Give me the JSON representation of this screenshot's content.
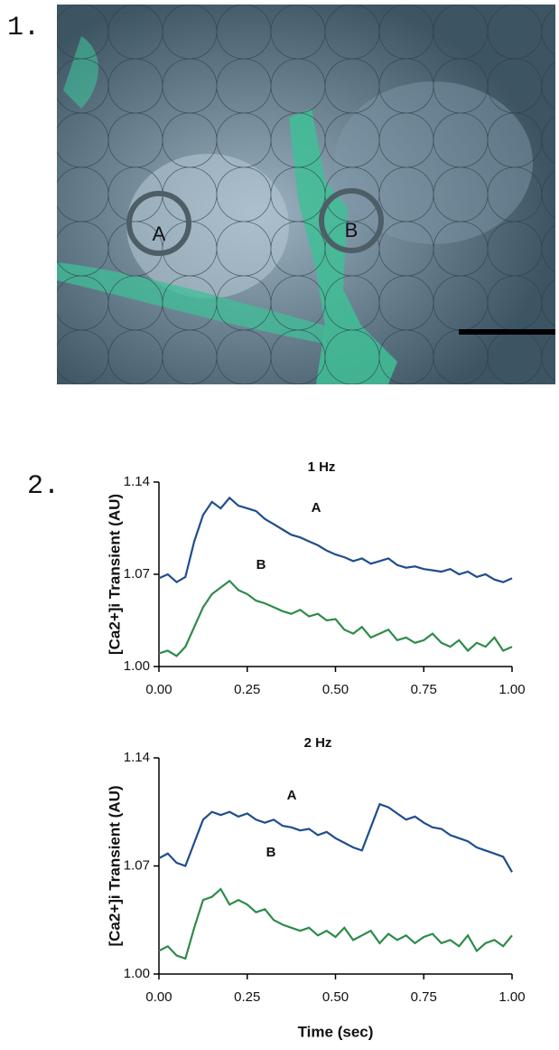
{
  "panel_labels": [
    "1.",
    "2."
  ],
  "micrograph": {
    "labels": [
      "A",
      "B"
    ]
  },
  "chart_data": [
    {
      "type": "line",
      "title": "1 Hz",
      "y_label": "[Ca2+]i Transient (AU)",
      "x": [
        0,
        0.025,
        0.05,
        0.075,
        0.1,
        0.125,
        0.15,
        0.175,
        0.2,
        0.225,
        0.25,
        0.275,
        0.3,
        0.325,
        0.35,
        0.375,
        0.4,
        0.425,
        0.45,
        0.475,
        0.5,
        0.525,
        0.55,
        0.575,
        0.6,
        0.625,
        0.65,
        0.675,
        0.7,
        0.725,
        0.75,
        0.775,
        0.8,
        0.825,
        0.85,
        0.875,
        0.9,
        0.925,
        0.95,
        0.975,
        1.0
      ],
      "series": [
        {
          "name": "A",
          "color": "#1f4e8c",
          "values": [
            1.067,
            1.07,
            1.064,
            1.068,
            1.095,
            1.115,
            1.125,
            1.12,
            1.128,
            1.122,
            1.12,
            1.118,
            1.112,
            1.108,
            1.104,
            1.1,
            1.098,
            1.095,
            1.092,
            1.088,
            1.085,
            1.083,
            1.08,
            1.082,
            1.078,
            1.08,
            1.082,
            1.077,
            1.075,
            1.076,
            1.074,
            1.073,
            1.072,
            1.074,
            1.07,
            1.072,
            1.068,
            1.07,
            1.066,
            1.064,
            1.067
          ]
        },
        {
          "name": "B",
          "color": "#2e8b4a",
          "values": [
            1.01,
            1.012,
            1.008,
            1.015,
            1.03,
            1.045,
            1.055,
            1.06,
            1.065,
            1.058,
            1.055,
            1.05,
            1.048,
            1.045,
            1.042,
            1.04,
            1.043,
            1.038,
            1.04,
            1.035,
            1.036,
            1.028,
            1.025,
            1.03,
            1.022,
            1.025,
            1.028,
            1.02,
            1.022,
            1.018,
            1.02,
            1.025,
            1.018,
            1.015,
            1.02,
            1.012,
            1.018,
            1.015,
            1.022,
            1.012,
            1.015
          ]
        }
      ],
      "xlim": [
        0,
        1
      ],
      "xticks": [
        {
          "value": 0,
          "label": "0.00"
        },
        {
          "value": 0.25,
          "label": "0.25"
        },
        {
          "value": 0.5,
          "label": "0.50"
        },
        {
          "value": 0.75,
          "label": "0.75"
        },
        {
          "value": 1,
          "label": "1.00"
        }
      ],
      "ylim": [
        1,
        1.14
      ],
      "yticks": [
        {
          "value": 1,
          "label": "1.00"
        },
        {
          "value": 1.07,
          "label": "1.07"
        },
        {
          "value": 1.14,
          "label": "1.14"
        }
      ]
    },
    {
      "type": "line",
      "title": "2 Hz",
      "y_label": "[Ca2+]i Transient (AU)",
      "x_label": "Time (sec)",
      "x": [
        0,
        0.025,
        0.05,
        0.075,
        0.1,
        0.125,
        0.15,
        0.175,
        0.2,
        0.225,
        0.25,
        0.275,
        0.3,
        0.325,
        0.35,
        0.375,
        0.4,
        0.425,
        0.45,
        0.475,
        0.5,
        0.525,
        0.55,
        0.575,
        0.6,
        0.625,
        0.65,
        0.675,
        0.7,
        0.725,
        0.75,
        0.775,
        0.8,
        0.825,
        0.85,
        0.875,
        0.9,
        0.925,
        0.95,
        0.975,
        1.0
      ],
      "series": [
        {
          "name": "A",
          "color": "#1f4e8c",
          "values": [
            1.075,
            1.078,
            1.072,
            1.07,
            1.085,
            1.1,
            1.105,
            1.103,
            1.105,
            1.102,
            1.104,
            1.1,
            1.098,
            1.1,
            1.096,
            1.095,
            1.093,
            1.094,
            1.09,
            1.092,
            1.088,
            1.085,
            1.082,
            1.08,
            1.095,
            1.11,
            1.108,
            1.104,
            1.1,
            1.102,
            1.098,
            1.095,
            1.094,
            1.09,
            1.088,
            1.086,
            1.082,
            1.08,
            1.078,
            1.076,
            1.066
          ]
        },
        {
          "name": "B",
          "color": "#2e8b4a",
          "values": [
            1.015,
            1.018,
            1.012,
            1.01,
            1.03,
            1.048,
            1.05,
            1.055,
            1.045,
            1.048,
            1.045,
            1.04,
            1.042,
            1.035,
            1.032,
            1.03,
            1.028,
            1.03,
            1.025,
            1.028,
            1.024,
            1.03,
            1.022,
            1.025,
            1.028,
            1.02,
            1.026,
            1.022,
            1.025,
            1.02,
            1.024,
            1.026,
            1.02,
            1.022,
            1.018,
            1.025,
            1.015,
            1.02,
            1.022,
            1.018,
            1.025
          ]
        }
      ],
      "xlim": [
        0,
        1
      ],
      "xticks": [
        {
          "value": 0,
          "label": "0.00"
        },
        {
          "value": 0.25,
          "label": "0.25"
        },
        {
          "value": 0.5,
          "label": "0.50"
        },
        {
          "value": 0.75,
          "label": "0.75"
        },
        {
          "value": 1,
          "label": "1.00"
        }
      ],
      "ylim": [
        1,
        1.14
      ],
      "yticks": [
        {
          "value": 1,
          "label": "1.00"
        },
        {
          "value": 1.07,
          "label": "1.07"
        },
        {
          "value": 1.14,
          "label": "1.14"
        }
      ]
    }
  ]
}
